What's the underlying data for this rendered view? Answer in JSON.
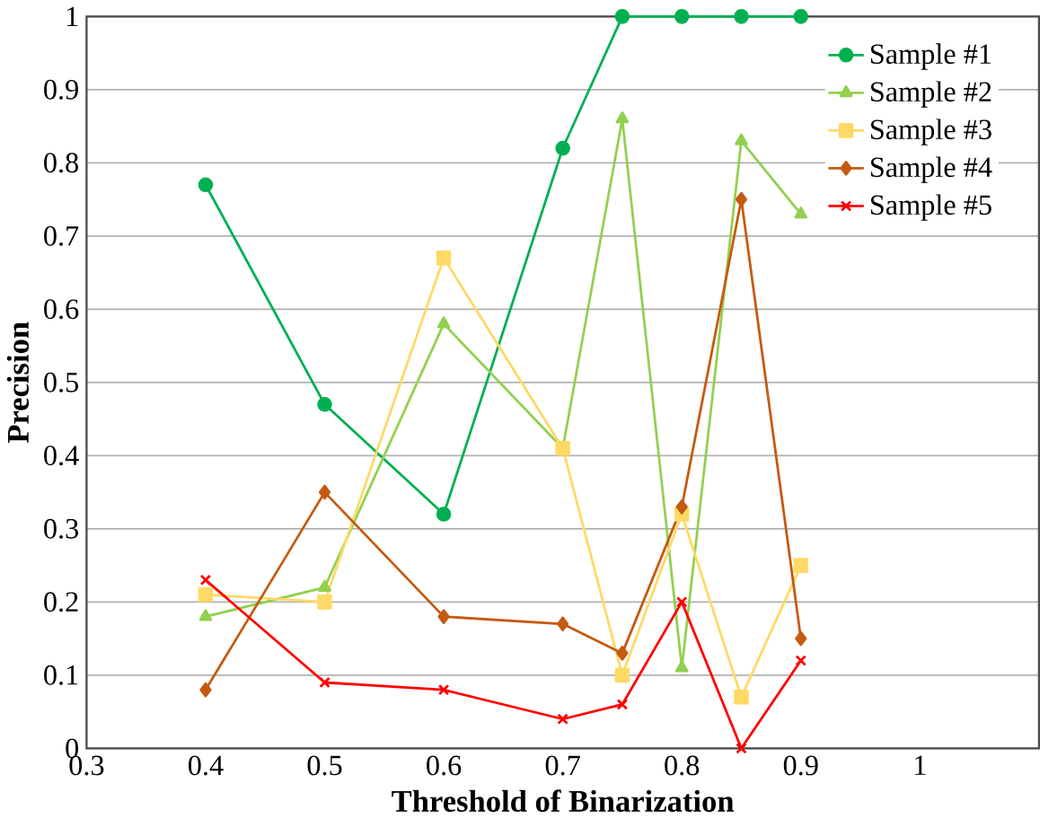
{
  "chart_data": {
    "type": "line",
    "xlabel": "Threshold of Binarization",
    "ylabel": "Precision",
    "xlim": [
      0.3,
      1.1
    ],
    "xticks": [
      0.3,
      0.4,
      0.5,
      0.6,
      0.7,
      0.8,
      0.9,
      1
    ],
    "ylim": [
      0,
      1
    ],
    "yticks": [
      0,
      0.1,
      0.2,
      0.3,
      0.4,
      0.5,
      0.6,
      0.7,
      0.8,
      0.9,
      1
    ],
    "x": [
      0.4,
      0.5,
      0.6,
      0.7,
      0.75,
      0.8,
      0.85,
      0.9
    ],
    "grid": "y",
    "legend": "top right",
    "series": [
      {
        "name": "Sample #1",
        "color": "#00b050",
        "marker": "circle",
        "values": [
          0.77,
          0.47,
          0.32,
          0.82,
          1,
          1,
          1,
          1
        ]
      },
      {
        "name": "Sample #2",
        "color": "#92d050",
        "marker": "triangle",
        "values": [
          0.18,
          0.22,
          0.58,
          0.41,
          0.86,
          0.11,
          0.83,
          0.73
        ]
      },
      {
        "name": "Sample #3",
        "color": "#ffd966",
        "marker": "square",
        "values": [
          0.21,
          0.2,
          0.67,
          0.41,
          0.1,
          0.32,
          0.07,
          0.25
        ]
      },
      {
        "name": "Sample #4",
        "color": "#c55a11",
        "marker": "diamond",
        "values": [
          0.08,
          0.35,
          0.18,
          0.17,
          0.13,
          0.33,
          0.75,
          0.15
        ]
      },
      {
        "name": "Sample #5",
        "color": "#ff0000",
        "marker": "cross",
        "values": [
          0.23,
          0.09,
          0.08,
          0.04,
          0.06,
          0.2,
          0,
          0.12
        ]
      }
    ]
  }
}
